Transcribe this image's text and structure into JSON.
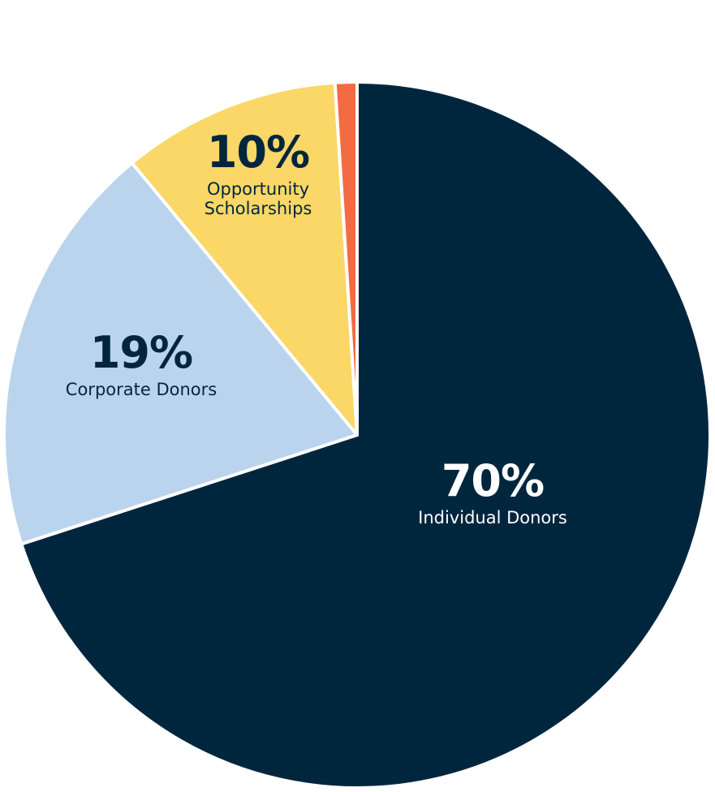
{
  "chart_data": {
    "type": "pie",
    "categories": [
      "Individual Donors",
      "Corporate Donors",
      "Opportunity Scholarships",
      null
    ],
    "values": [
      70,
      19,
      10,
      1
    ],
    "value_labels": [
      "70%",
      "19%",
      "10%",
      null
    ],
    "colors": [
      "#00263e",
      "#bad4ed",
      "#fad766",
      "#f26b43"
    ]
  }
}
